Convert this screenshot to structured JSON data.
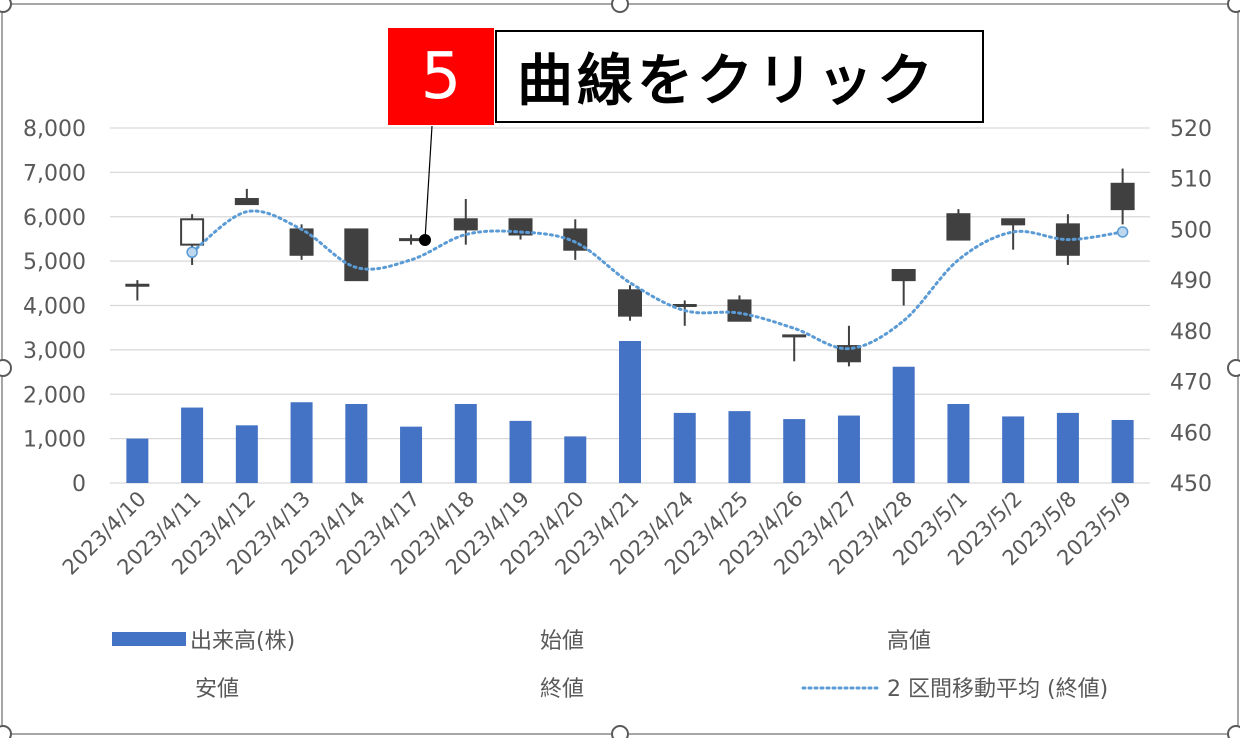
{
  "callout": {
    "number": "5",
    "text": "曲線をクリック"
  },
  "colors": {
    "volume_bar": "#4472c4",
    "bear_candle": "#404040",
    "bull_candle_fill": "#ffffff",
    "candle_edge": "#404040",
    "moving_average": "#5b9bd5",
    "gridline": "#d9d9d9",
    "axis_text": "#595959",
    "callout_red": "#ff0000"
  },
  "chart_data": {
    "type": "bar",
    "categories": [
      "2023/4/10",
      "2023/4/11",
      "2023/4/12",
      "2023/4/13",
      "2023/4/14",
      "2023/4/17",
      "2023/4/18",
      "2023/4/19",
      "2023/4/20",
      "2023/4/21",
      "2023/4/24",
      "2023/4/25",
      "2023/4/26",
      "2023/4/27",
      "2023/4/28",
      "2023/5/1",
      "2023/5/2",
      "2023/5/8",
      "2023/5/9"
    ],
    "grid": true,
    "legend_position": "bottom",
    "left_axis": {
      "ylim": [
        0,
        8000
      ],
      "ticks": [
        0,
        1000,
        2000,
        3000,
        4000,
        5000,
        6000,
        7000,
        8000
      ],
      "tick_labels": [
        "0",
        "1,000",
        "2,000",
        "3,000",
        "4,000",
        "5,000",
        "6,000",
        "7,000",
        "8,000"
      ]
    },
    "right_axis": {
      "ylim": [
        450,
        520
      ],
      "ticks": [
        450,
        460,
        470,
        480,
        490,
        500,
        510,
        520
      ],
      "tick_labels": [
        "450",
        "460",
        "470",
        "480",
        "490",
        "500",
        "510",
        "520"
      ]
    },
    "series": [
      {
        "name": "出来高(株)",
        "type": "bar",
        "axis": "left",
        "values": [
          1000,
          1700,
          1300,
          1820,
          1780,
          1270,
          1780,
          1400,
          1050,
          3200,
          1580,
          1620,
          1440,
          1520,
          2620,
          1780,
          1500,
          1580,
          1420
        ]
      },
      {
        "name": "始値",
        "type": "candlestick",
        "axis": "right",
        "values": [
          489,
          497,
          506,
          500,
          500,
          498,
          502,
          502,
          500,
          488,
          485,
          486,
          479,
          477,
          492,
          503,
          502,
          501,
          509
        ]
      },
      {
        "name": "高値",
        "type": "candlestick",
        "axis": "right",
        "values": [
          490,
          503,
          508,
          501,
          500,
          499,
          506,
          502,
          502,
          489,
          486,
          487,
          479,
          481,
          492,
          504,
          502,
          503,
          512
        ]
      },
      {
        "name": "安値",
        "type": "candlestick",
        "axis": "right",
        "values": [
          486,
          493,
          505,
          494,
          490,
          497,
          497,
          498,
          494,
          482,
          481,
          482,
          474,
          473,
          485,
          498,
          496,
          493,
          501
        ]
      },
      {
        "name": "終値",
        "type": "candlestick",
        "axis": "right",
        "values": [
          489,
          502,
          505,
          495,
          490,
          498,
          500,
          499,
          496,
          483,
          485,
          482,
          479,
          474,
          490,
          498,
          501,
          495,
          504
        ]
      },
      {
        "name": "2 区間移動平均 (終値)",
        "type": "line",
        "style": "dotted",
        "axis": "right",
        "values": [
          null,
          495.5,
          503.5,
          500,
          492.5,
          494,
          499,
          499.5,
          497.5,
          489.5,
          484,
          483.5,
          480.5,
          476.5,
          482,
          494,
          499.5,
          498,
          499.5
        ]
      }
    ],
    "legend": [
      {
        "label": "出来高(株)",
        "marker": "bar"
      },
      {
        "label": "始値",
        "marker": "none"
      },
      {
        "label": "高値",
        "marker": "none"
      },
      {
        "label": "安値",
        "marker": "none"
      },
      {
        "label": "終値",
        "marker": "none"
      },
      {
        "label": "2 区間移動平均 (終値)",
        "marker": "dotted-line"
      }
    ]
  }
}
